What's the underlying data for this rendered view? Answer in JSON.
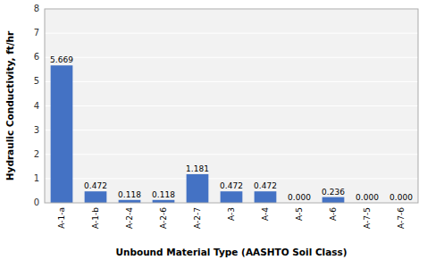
{
  "chart_data": {
    "type": "bar",
    "categories": [
      "A-1-a",
      "A-1-b",
      "A-2-4",
      "A-2-6",
      "A-2-7",
      "A-3",
      "A-4",
      "A-5",
      "A-6",
      "A-7-5",
      "A-7-6"
    ],
    "values": [
      5.669,
      0.472,
      0.118,
      0.118,
      1.181,
      0.472,
      0.472,
      0.0,
      0.236,
      0.0,
      0.0
    ],
    "value_labels": [
      "5.669",
      "0.472",
      "0.118",
      "0.118",
      "1.181",
      "0.472",
      "0.472",
      "0.000",
      "0.236",
      "0.000",
      "0.000"
    ],
    "data_labels": true,
    "color": "#4472C4",
    "xlabel": "Unbound Material Type (AASHTO Soil Class)",
    "ylabel": "Hydraulic Conductivity, ft/hr",
    "ylim": [
      0,
      8
    ],
    "yticks": [
      0,
      1,
      2,
      3,
      4,
      5,
      6,
      7,
      8
    ],
    "grid": true
  }
}
